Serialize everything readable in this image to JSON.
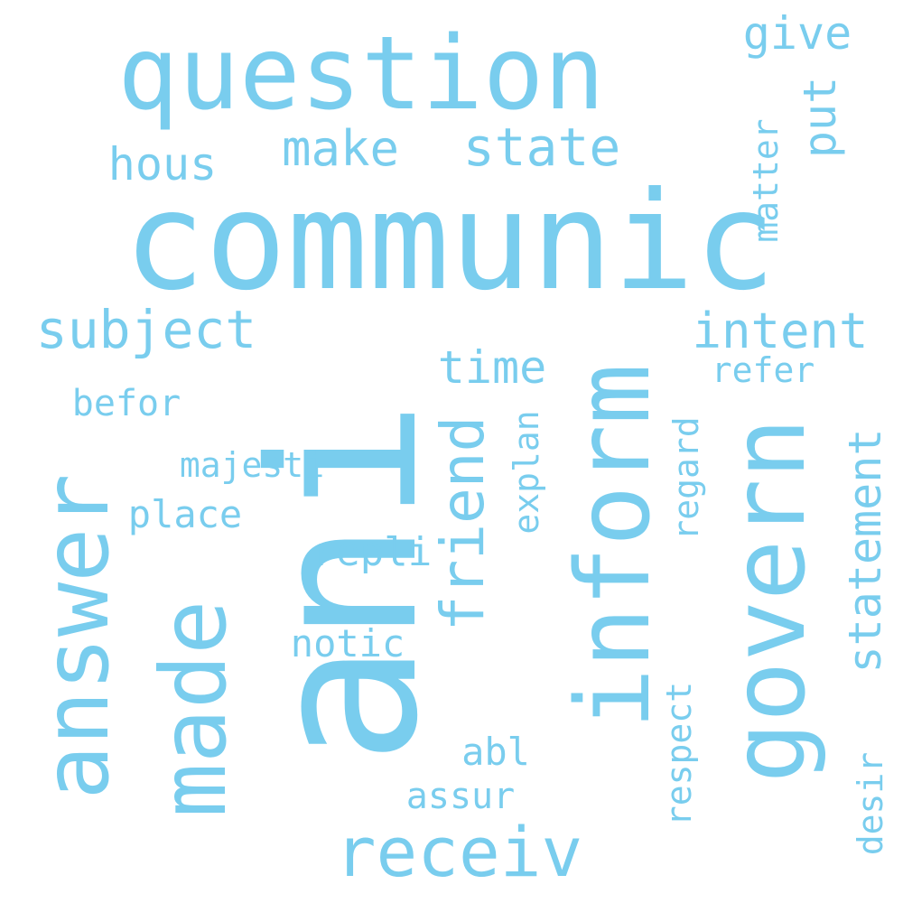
{
  "word_cloud": {
    "color": "#79cdee",
    "background": "#ffffff",
    "words": [
      {
        "id": "communic",
        "text": "communic",
        "orientation": "horizontal"
      },
      {
        "id": "question",
        "text": "question",
        "orientation": "horizontal"
      },
      {
        "id": "ani",
        "text": "ani",
        "orientation": "vertical"
      },
      {
        "id": "inform",
        "text": "inform",
        "orientation": "vertical"
      },
      {
        "id": "govern",
        "text": "govern",
        "orientation": "vertical"
      },
      {
        "id": "answer",
        "text": "answer",
        "orientation": "vertical"
      },
      {
        "id": "made",
        "text": "made",
        "orientation": "vertical"
      },
      {
        "id": "receiv",
        "text": "receiv",
        "orientation": "horizontal"
      },
      {
        "id": "friend",
        "text": "friend",
        "orientation": "vertical"
      },
      {
        "id": "subject",
        "text": "subject",
        "orientation": "horizontal"
      },
      {
        "id": "statement",
        "text": "statement",
        "orientation": "vertical"
      },
      {
        "id": "state",
        "text": "state",
        "orientation": "horizontal"
      },
      {
        "id": "make",
        "text": "make",
        "orientation": "horizontal"
      },
      {
        "id": "intent",
        "text": "intent",
        "orientation": "horizontal"
      },
      {
        "id": "hous",
        "text": "hous",
        "orientation": "horizontal"
      },
      {
        "id": "give",
        "text": "give",
        "orientation": "horizontal"
      },
      {
        "id": "time",
        "text": "time",
        "orientation": "horizontal"
      },
      {
        "id": "put",
        "text": "put",
        "orientation": "vertical"
      },
      {
        "id": "place",
        "text": "place",
        "orientation": "horizontal"
      },
      {
        "id": "majesti",
        "text": "majesti",
        "orientation": "horizontal"
      },
      {
        "id": "befor",
        "text": "befor",
        "orientation": "horizontal"
      },
      {
        "id": "repli",
        "text": "repli",
        "orientation": "horizontal"
      },
      {
        "id": "notic",
        "text": "notic",
        "orientation": "horizontal"
      },
      {
        "id": "explan",
        "text": "explan",
        "orientation": "vertical"
      },
      {
        "id": "regard",
        "text": "regard",
        "orientation": "vertical"
      },
      {
        "id": "refer",
        "text": "refer",
        "orientation": "horizontal"
      },
      {
        "id": "matter",
        "text": "matter",
        "orientation": "vertical"
      },
      {
        "id": "respect",
        "text": "respect",
        "orientation": "vertical"
      },
      {
        "id": "assur",
        "text": "assur",
        "orientation": "horizontal"
      },
      {
        "id": "abl",
        "text": "abl",
        "orientation": "horizontal"
      },
      {
        "id": "desir",
        "text": "desir",
        "orientation": "vertical"
      }
    ]
  }
}
